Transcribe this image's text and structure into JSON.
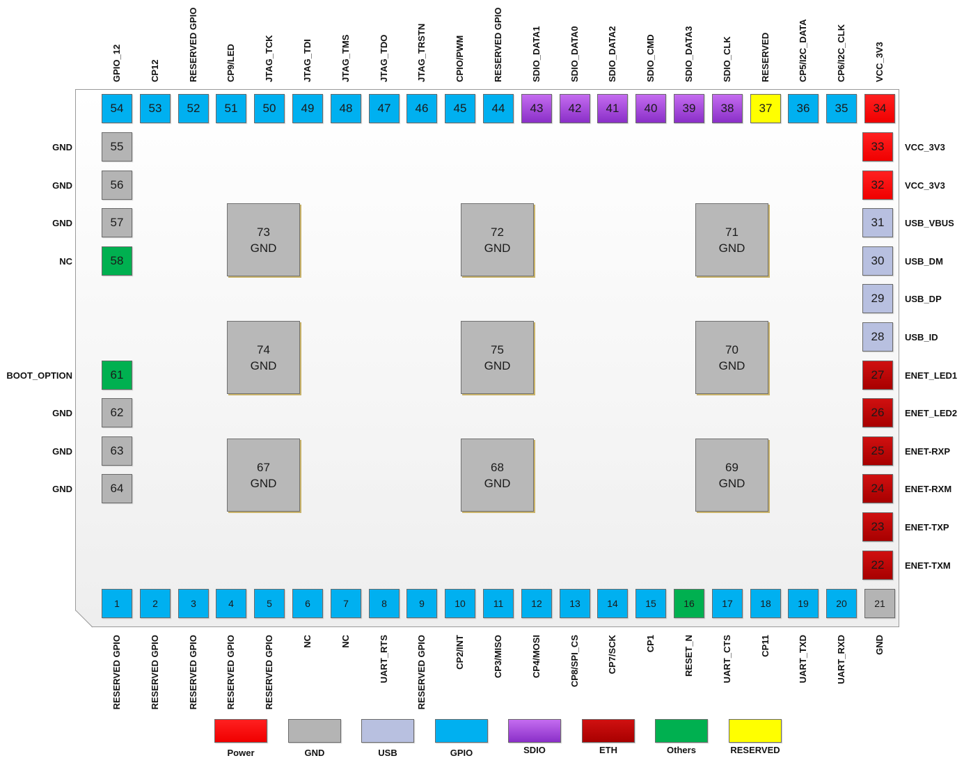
{
  "colors": {
    "Power": "#ff0000",
    "GND": "#b4b4b4",
    "USB": "#b8c0e0",
    "GPIO": "#00b0f0",
    "SDIO": "#9b38d8",
    "ETH": "#c00000",
    "Others": "#00b050",
    "RESERVED": "#ffff00"
  },
  "top_pins": [
    {
      "num": "54",
      "label": "GPIO_12",
      "group": "GPIO"
    },
    {
      "num": "53",
      "label": "CP12",
      "group": "GPIO"
    },
    {
      "num": "52",
      "label": "RESERVED GPIO",
      "group": "GPIO"
    },
    {
      "num": "51",
      "label": "CP9/LED",
      "group": "GPIO"
    },
    {
      "num": "50",
      "label": "JTAG_TCK",
      "group": "GPIO"
    },
    {
      "num": "49",
      "label": "JTAG_TDI",
      "group": "GPIO"
    },
    {
      "num": "48",
      "label": "JTAG_TMS",
      "group": "GPIO"
    },
    {
      "num": "47",
      "label": "JTAG_TDO",
      "group": "GPIO"
    },
    {
      "num": "46",
      "label": "JTAG_TRSTN",
      "group": "GPIO"
    },
    {
      "num": "45",
      "label": "CPIO/PWM",
      "group": "GPIO"
    },
    {
      "num": "44",
      "label": "RESERVED GPIO",
      "group": "GPIO"
    },
    {
      "num": "43",
      "label": "SDIO_DATA1",
      "group": "SDIO"
    },
    {
      "num": "42",
      "label": "SDIO_DATA0",
      "group": "SDIO"
    },
    {
      "num": "41",
      "label": "SDIO_DATA2",
      "group": "SDIO"
    },
    {
      "num": "40",
      "label": "SDIO_CMD",
      "group": "SDIO"
    },
    {
      "num": "39",
      "label": "SDIO_DATA3",
      "group": "SDIO"
    },
    {
      "num": "38",
      "label": "SDIO_CLK",
      "group": "SDIO"
    },
    {
      "num": "37",
      "label": "RESERVED",
      "group": "RESERVED"
    },
    {
      "num": "36",
      "label": "CP5/I2C_DATA",
      "group": "GPIO"
    },
    {
      "num": "35",
      "label": "CP6/I2C_CLK",
      "group": "GPIO"
    },
    {
      "num": "34",
      "label": "VCC_3V3",
      "group": "Power"
    }
  ],
  "bottom_pins": [
    {
      "num": "1",
      "label": "RESERVED GPIO",
      "group": "GPIO"
    },
    {
      "num": "2",
      "label": "RESERVED GPIO",
      "group": "GPIO"
    },
    {
      "num": "3",
      "label": "RESERVED GPIO",
      "group": "GPIO"
    },
    {
      "num": "4",
      "label": "RESERVED GPIO",
      "group": "GPIO"
    },
    {
      "num": "5",
      "label": "RESERVED GPIO",
      "group": "GPIO"
    },
    {
      "num": "6",
      "label": "NC",
      "group": "GPIO"
    },
    {
      "num": "7",
      "label": "NC",
      "group": "GPIO"
    },
    {
      "num": "8",
      "label": "UART_RTS",
      "group": "GPIO"
    },
    {
      "num": "9",
      "label": "RESERVED GPIO",
      "group": "GPIO"
    },
    {
      "num": "10",
      "label": "CP2/INT",
      "group": "GPIO"
    },
    {
      "num": "11",
      "label": "CP3/MISO",
      "group": "GPIO"
    },
    {
      "num": "12",
      "label": "CP4/MOSI",
      "group": "GPIO"
    },
    {
      "num": "13",
      "label": "CP8/SPI_CS",
      "group": "GPIO"
    },
    {
      "num": "14",
      "label": "CP7/SCK",
      "group": "GPIO"
    },
    {
      "num": "15",
      "label": "CP1",
      "group": "GPIO"
    },
    {
      "num": "16",
      "label": "RESET_N",
      "group": "Others"
    },
    {
      "num": "17",
      "label": "UART_CTS",
      "group": "GPIO"
    },
    {
      "num": "18",
      "label": "CP11",
      "group": "GPIO"
    },
    {
      "num": "19",
      "label": "UART_TXD",
      "group": "GPIO"
    },
    {
      "num": "20",
      "label": "UART_RXD",
      "group": "GPIO"
    },
    {
      "num": "21",
      "label": "GND",
      "group": "GND"
    }
  ],
  "left_pins": [
    {
      "num": "55",
      "label": "GND",
      "group": "GND"
    },
    {
      "num": "56",
      "label": "GND",
      "group": "GND"
    },
    {
      "num": "57",
      "label": "GND",
      "group": "GND"
    },
    {
      "num": "58",
      "label": "NC",
      "group": "Others"
    },
    {
      "num": "61",
      "label": "BOOT_OPTION",
      "group": "Others"
    },
    {
      "num": "62",
      "label": "GND",
      "group": "GND"
    },
    {
      "num": "63",
      "label": "GND",
      "group": "GND"
    },
    {
      "num": "64",
      "label": "GND",
      "group": "GND"
    }
  ],
  "right_pins": [
    {
      "num": "33",
      "label": "VCC_3V3",
      "group": "Power"
    },
    {
      "num": "32",
      "label": "VCC_3V3",
      "group": "Power"
    },
    {
      "num": "31",
      "label": "USB_VBUS",
      "group": "USB"
    },
    {
      "num": "30",
      "label": "USB_DM",
      "group": "USB"
    },
    {
      "num": "29",
      "label": "USB_DP",
      "group": "USB"
    },
    {
      "num": "28",
      "label": "USB_ID",
      "group": "USB"
    },
    {
      "num": "27",
      "label": "ENET_LED1",
      "group": "ETH"
    },
    {
      "num": "26",
      "label": "ENET_LED2",
      "group": "ETH"
    },
    {
      "num": "25",
      "label": "ENET-RXP",
      "group": "ETH"
    },
    {
      "num": "24",
      "label": "ENET-RXM",
      "group": "ETH"
    },
    {
      "num": "23",
      "label": "ENET-TXP",
      "group": "ETH"
    },
    {
      "num": "22",
      "label": "ENET-TXM",
      "group": "ETH"
    }
  ],
  "center_pads": [
    {
      "num": "73",
      "label": "GND"
    },
    {
      "num": "72",
      "label": "GND"
    },
    {
      "num": "71",
      "label": "GND"
    },
    {
      "num": "74",
      "label": "GND"
    },
    {
      "num": "75",
      "label": "GND"
    },
    {
      "num": "70",
      "label": "GND"
    },
    {
      "num": "67",
      "label": "GND"
    },
    {
      "num": "68",
      "label": "GND"
    },
    {
      "num": "69",
      "label": "GND"
    }
  ],
  "legend": [
    {
      "label": "Power",
      "group": "Power"
    },
    {
      "label": "GND",
      "group": "GND"
    },
    {
      "label": "USB",
      "group": "USB"
    },
    {
      "label": "GPIO",
      "group": "GPIO"
    },
    {
      "label": "SDIO",
      "group": "SDIO"
    },
    {
      "label": "ETH",
      "group": "ETH"
    },
    {
      "label": "Others",
      "group": "Others"
    },
    {
      "label": "RESERVED",
      "group": "RESERVED"
    }
  ]
}
